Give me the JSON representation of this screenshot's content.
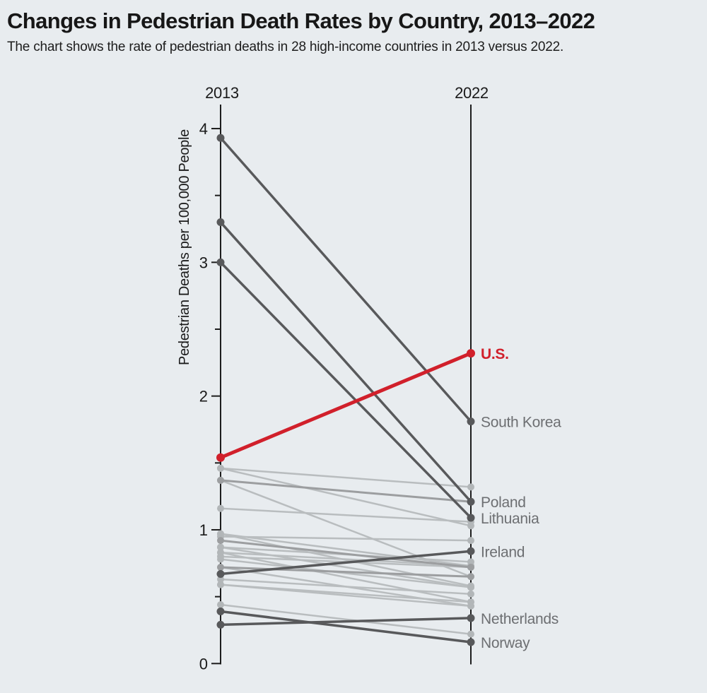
{
  "header": {
    "title": "Changes in Pedestrian Death Rates by Country, 2013–2022",
    "subtitle": "The chart shows the rate of pedestrian deaths in 28 high-income countries in 2013 versus 2022."
  },
  "chart_data": {
    "type": "line",
    "subtype": "slope",
    "columns": [
      "2013",
      "2022"
    ],
    "ylabel": "Pedestrian Deaths per 100,000 People",
    "yticks": [
      0,
      1,
      2,
      3,
      4
    ],
    "minor_yticks": [
      0.5,
      1.5,
      2.5,
      3.5
    ],
    "ylim": [
      0,
      4.2
    ],
    "grid": false,
    "legend_position": "none",
    "colors": {
      "background": "#e8ecef",
      "highlight": "#d1202b",
      "dark": "#58595b",
      "medium": "#9c9ea0",
      "light": "#b9bdbf",
      "axis": "#1d1d1d",
      "tick_text": "#1a1a1a",
      "country_label": "#6d6f72"
    },
    "series": [
      {
        "name": "U.S.",
        "values": [
          1.54,
          2.32
        ],
        "style": "highlight"
      },
      {
        "name": "South Korea",
        "values": [
          3.93,
          1.81
        ],
        "style": "dark"
      },
      {
        "name": "Poland",
        "values": [
          3.3,
          1.21
        ],
        "style": "dark"
      },
      {
        "name": "Lithuania",
        "values": [
          3.0,
          1.09
        ],
        "style": "dark"
      },
      {
        "name": "Ireland",
        "values": [
          0.67,
          0.84
        ],
        "style": "dark"
      },
      {
        "name": "Netherlands",
        "values": [
          0.29,
          0.34
        ],
        "style": "dark"
      },
      {
        "name": "Norway",
        "values": [
          0.39,
          0.16
        ],
        "style": "dark"
      },
      {
        "name": "",
        "values": [
          1.46,
          1.32
        ],
        "style": "light"
      },
      {
        "name": "",
        "values": [
          1.46,
          1.03
        ],
        "style": "light"
      },
      {
        "name": "",
        "values": [
          1.37,
          1.21
        ],
        "style": "medium"
      },
      {
        "name": "",
        "values": [
          1.37,
          0.65
        ],
        "style": "light"
      },
      {
        "name": "",
        "values": [
          1.16,
          1.06
        ],
        "style": "light"
      },
      {
        "name": "",
        "values": [
          0.97,
          0.73
        ],
        "style": "light"
      },
      {
        "name": "",
        "values": [
          0.97,
          0.58
        ],
        "style": "light"
      },
      {
        "name": "",
        "values": [
          0.95,
          0.92
        ],
        "style": "light"
      },
      {
        "name": "",
        "values": [
          0.92,
          0.72
        ],
        "style": "medium"
      },
      {
        "name": "",
        "values": [
          0.87,
          0.76
        ],
        "style": "light"
      },
      {
        "name": "",
        "values": [
          0.87,
          0.57
        ],
        "style": "light"
      },
      {
        "name": "",
        "values": [
          0.83,
          0.73
        ],
        "style": "light"
      },
      {
        "name": "",
        "values": [
          0.83,
          0.46
        ],
        "style": "light"
      },
      {
        "name": "",
        "values": [
          0.8,
          0.72
        ],
        "style": "light"
      },
      {
        "name": "",
        "values": [
          0.78,
          0.57
        ],
        "style": "light"
      },
      {
        "name": "",
        "values": [
          0.72,
          0.65
        ],
        "style": "medium"
      },
      {
        "name": "",
        "values": [
          0.72,
          0.43
        ],
        "style": "light"
      },
      {
        "name": "",
        "values": [
          0.63,
          0.52
        ],
        "style": "light"
      },
      {
        "name": "",
        "values": [
          0.59,
          0.46
        ],
        "style": "light"
      },
      {
        "name": "",
        "values": [
          0.59,
          0.43
        ],
        "style": "light"
      },
      {
        "name": "",
        "values": [
          0.44,
          0.22
        ],
        "style": "light"
      }
    ]
  }
}
